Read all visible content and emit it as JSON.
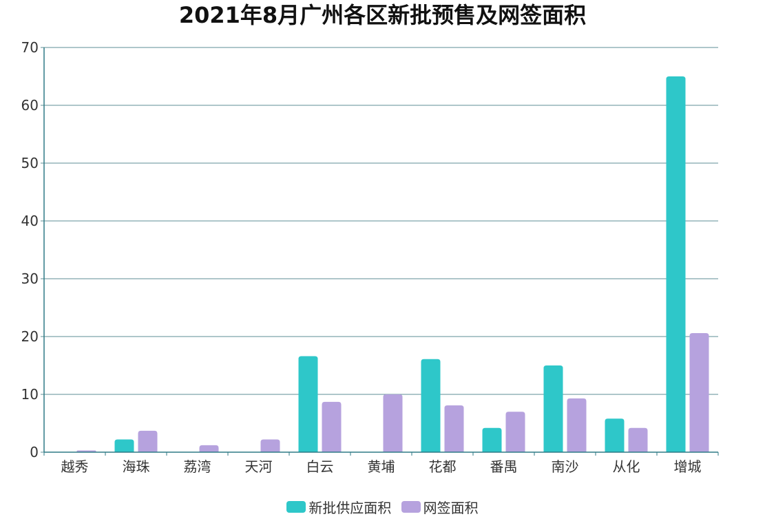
{
  "chart_data": {
    "type": "bar",
    "title": "2021年8月广州各区新批预售及网签面积",
    "categories": [
      "越秀",
      "海珠",
      "荔湾",
      "天河",
      "白云",
      "黄埔",
      "花都",
      "番禺",
      "南沙",
      "从化",
      "增城"
    ],
    "series": [
      {
        "name": "新批供应面积",
        "color": "#2ec7c9",
        "values": [
          0,
          2.2,
          0,
          0,
          16.6,
          0,
          16.1,
          4.2,
          15.0,
          5.8,
          65.0
        ]
      },
      {
        "name": "网签面积",
        "color": "#b6a2de",
        "values": [
          0.3,
          3.7,
          1.2,
          2.2,
          8.7,
          10.0,
          8.1,
          7.0,
          9.3,
          4.2,
          20.6
        ]
      }
    ],
    "ylim": [
      0,
      70
    ],
    "yticks": [
      0,
      10,
      20,
      30,
      40,
      50,
      60,
      70
    ],
    "grid": true,
    "legend": "bottom-center"
  }
}
